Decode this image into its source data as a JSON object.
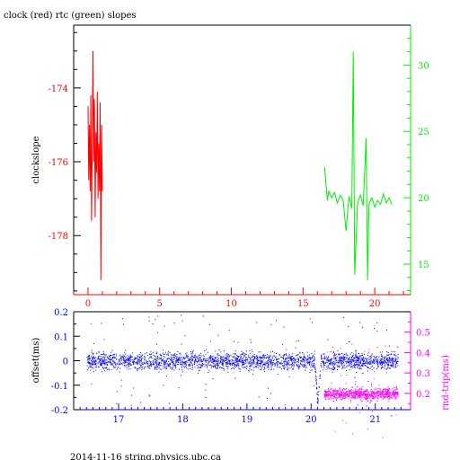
{
  "page": {
    "title": "clock (red) rtc (green) slopes",
    "footer": "2014-11-16 string.physics.ubc.ca"
  },
  "colors": {
    "clock": "#ff0000",
    "rtc": "#00ee00",
    "offset": "#0000ff",
    "rtt": "#ff00ff",
    "axis": "#000000"
  },
  "chart_data": [
    {
      "type": "line",
      "title": "clock (red) rtc (green) slopes",
      "ylabel": "clockslope",
      "xlim": [
        -1,
        22.5
      ],
      "ylim": [
        -179.6,
        -172.3
      ],
      "xticks": [
        0,
        5,
        10,
        15,
        20
      ],
      "yticks_left": [
        -178,
        -176,
        -174
      ],
      "right_axis": {
        "ylim": [
          12.7,
          33.0
        ],
        "ticks": [
          15,
          20,
          25,
          30
        ]
      },
      "series": [
        {
          "name": "clock",
          "axis": "left",
          "x": [
            0.0,
            0.05,
            0.1,
            0.15,
            0.2,
            0.25,
            0.3,
            0.35,
            0.4,
            0.45,
            0.5,
            0.55,
            0.6,
            0.65,
            0.7,
            0.75,
            0.8,
            0.85,
            0.9,
            0.95,
            1.0
          ],
          "values": [
            -174.5,
            -176.5,
            -175.0,
            -176.8,
            -174.2,
            -177.6,
            -175.5,
            -173.0,
            -176.0,
            -174.3,
            -177.5,
            -175.2,
            -176.3,
            -174.1,
            -177.0,
            -175.5,
            -176.8,
            -174.4,
            -179.2,
            -175.0,
            -176.8
          ]
        },
        {
          "name": "rtc",
          "axis": "right",
          "x": [
            16.5,
            16.6,
            16.7,
            16.8,
            17.0,
            17.2,
            17.4,
            17.6,
            17.8,
            18.0,
            18.2,
            18.4,
            18.5,
            18.6,
            18.8,
            19.0,
            19.2,
            19.4,
            19.5,
            19.6,
            19.8,
            20.0,
            20.2,
            20.4,
            20.6,
            20.8,
            21.0,
            21.2
          ],
          "values": [
            22.3,
            21.0,
            19.8,
            20.5,
            20.0,
            20.4,
            19.6,
            20.2,
            19.8,
            17.5,
            20.1,
            19.2,
            31.0,
            14.2,
            19.6,
            20.2,
            19.4,
            24.5,
            13.8,
            19.5,
            20.0,
            19.3,
            19.8,
            19.5,
            20.3,
            19.6,
            20.0,
            19.5
          ]
        }
      ]
    },
    {
      "type": "scatter",
      "ylabel": "offset(ms)",
      "ylabel_right": "rnd-trip(ms)",
      "xlim": [
        16.3,
        21.55
      ],
      "ylim": [
        -0.2,
        0.2
      ],
      "xticks": [
        17,
        18,
        19,
        20,
        21
      ],
      "yticks_left": [
        -0.2,
        -0.1,
        0,
        0.1,
        0.2
      ],
      "right_axis": {
        "ylim": [
          0.12,
          0.6
        ],
        "ticks": [
          0.2,
          0.3,
          0.4,
          0.5
        ]
      },
      "series": [
        {
          "name": "offset",
          "axis": "left",
          "x_range": [
            16.5,
            21.35
          ],
          "center": 0.0,
          "spread": 0.025,
          "dip": {
            "x": 20.1,
            "min": -0.17
          }
        },
        {
          "name": "rnd-trip",
          "axis": "right",
          "x_range": [
            20.2,
            21.35
          ],
          "center": 0.2,
          "spread": 0.02
        }
      ]
    }
  ]
}
